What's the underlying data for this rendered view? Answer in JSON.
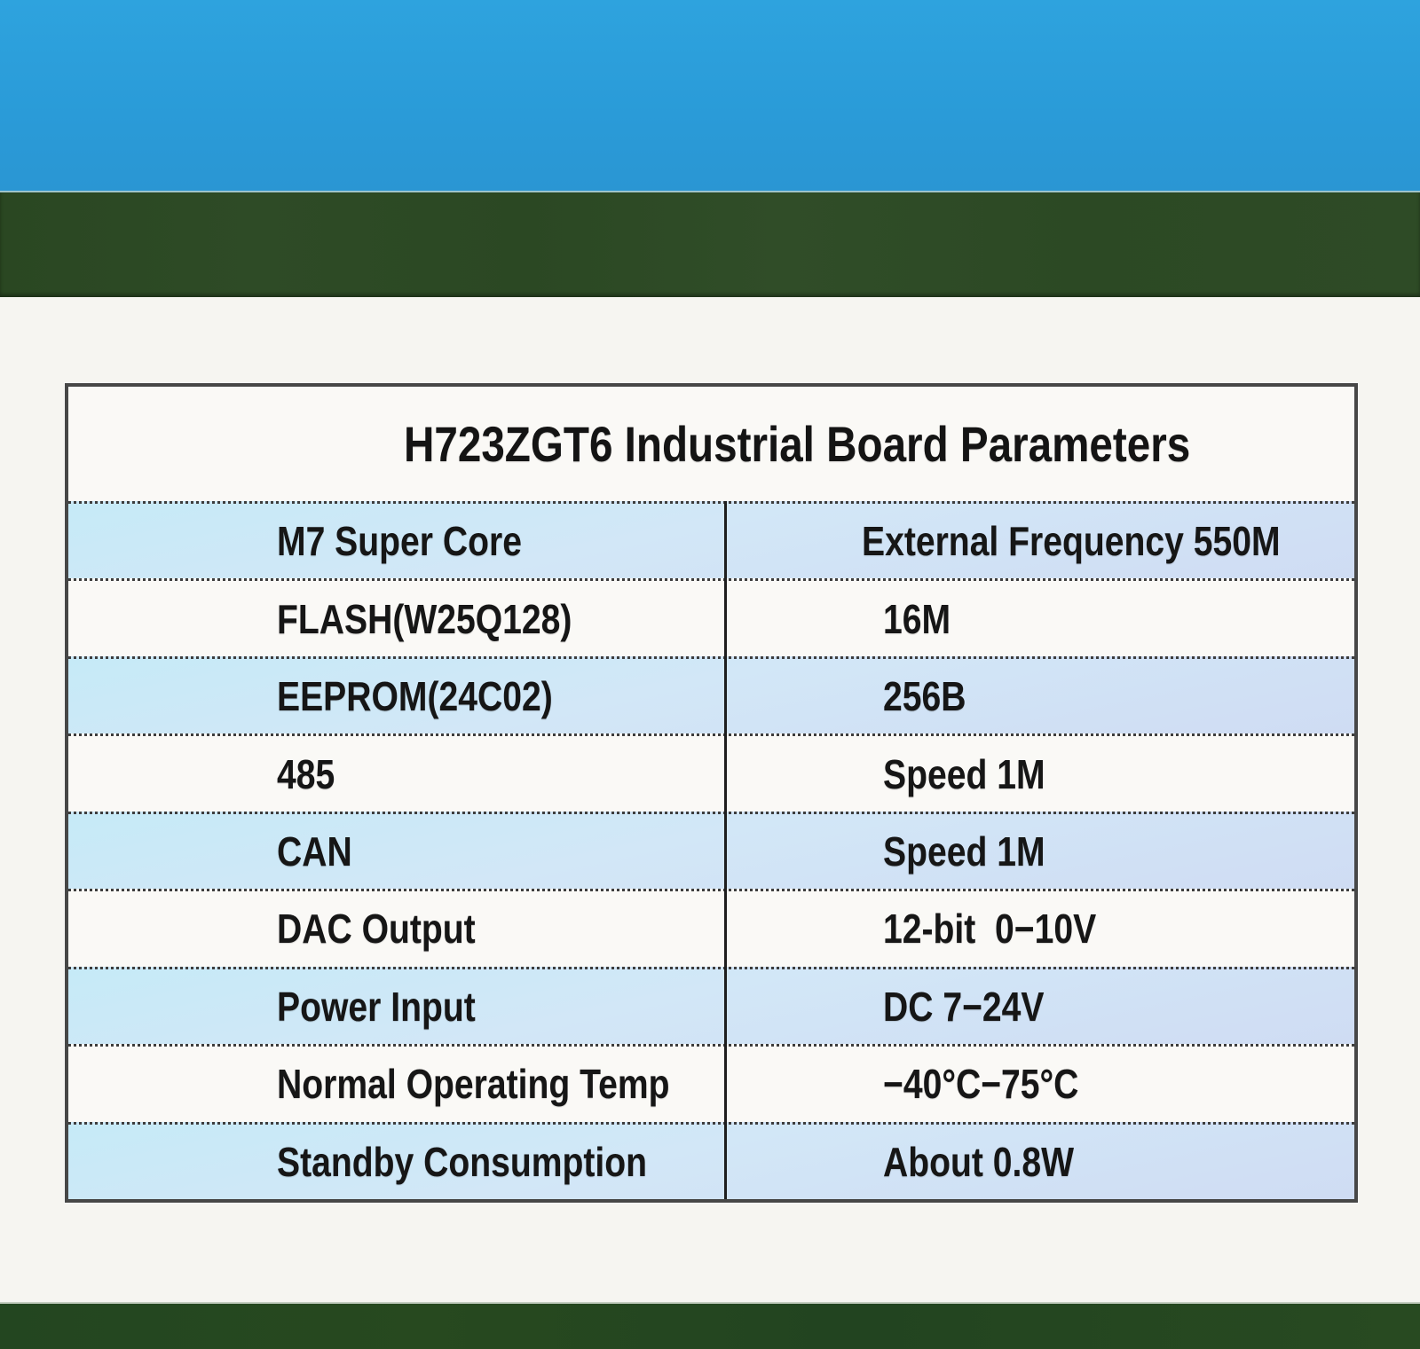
{
  "title": "H723ZGT6 Industrial Board Parameters",
  "table": {
    "rows": [
      {
        "label": "M7 Super Core",
        "value": "External Frequency 550M"
      },
      {
        "label": "FLASH(W25Q128)",
        "value": "16M"
      },
      {
        "label": "EEPROM(24C02)",
        "value": "256B"
      },
      {
        "label": "485",
        "value": "Speed 1M"
      },
      {
        "label": "CAN",
        "value": "Speed 1M"
      },
      {
        "label": "DAC Output",
        "value": "12-bit  0−10V"
      },
      {
        "label": "Power Input",
        "value": "DC 7−24V"
      },
      {
        "label": "Normal Operating Temp",
        "value": "−40°C−75°C"
      },
      {
        "label": "Standby Consumption",
        "value": "About 0.8W"
      }
    ]
  },
  "colors": {
    "top_band_blue": "#2a9bd8",
    "green_band_top": "#2d4a25",
    "green_band_bottom": "#26481f",
    "page_background": "#f6f5f1",
    "table_background": "#faf9f6",
    "highlight_row_blue": "#cde4f5",
    "table_border": "#474747",
    "text": "#141414"
  }
}
